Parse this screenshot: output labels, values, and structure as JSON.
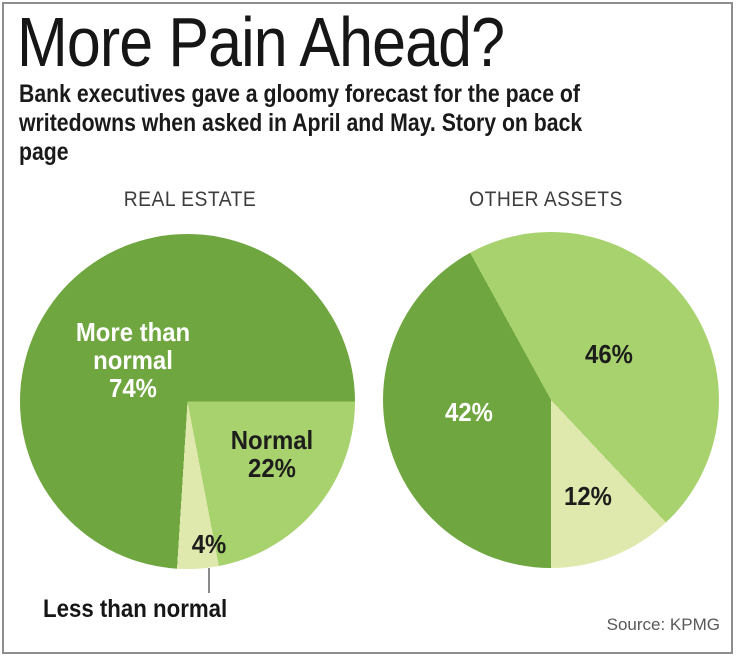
{
  "frame": {
    "border_color": "#8e8e8e"
  },
  "header": {
    "title": "More Pain Ahead?",
    "subtitle": "Bank executives gave a gloomy forecast for the pace of\nwritedowns when asked in April and May. Story on back\npage"
  },
  "source": {
    "text": "Source: KPMG"
  },
  "colors": {
    "more_than_normal": "#6fa640",
    "normal": "#a8d26e",
    "less_than_normal": "#dfe9ae",
    "pointer_line": "#8a8a8a"
  },
  "chart_data": [
    {
      "type": "pie",
      "title": "REAL ESTATE",
      "unit": "%",
      "start_deg": 90,
      "segments": [
        {
          "label": "Normal",
          "value": 22,
          "color": "#a8d26e",
          "text_color": "#1d1d1b",
          "display": "Normal\n22%"
        },
        {
          "label": "Less than normal",
          "value": 4,
          "color": "#dfe9ae",
          "text_color": "#1d1d1b",
          "display": "4%",
          "callout_label": "Less than normal"
        },
        {
          "label": "More than normal",
          "value": 74,
          "color": "#6fa640",
          "text_color": "#ffffff",
          "display": "More than\nnormal\n74%"
        }
      ]
    },
    {
      "type": "pie",
      "title": "OTHER ASSETS",
      "unit": "%",
      "start_deg": 180,
      "segments": [
        {
          "value": 42,
          "color": "#6fa640",
          "text_color": "#ffffff",
          "display": "42%"
        },
        {
          "value": 46,
          "color": "#a8d26e",
          "text_color": "#1d1d1b",
          "display": "46%"
        },
        {
          "value": 12,
          "color": "#dfe9ae",
          "text_color": "#1d1d1b",
          "display": "12%"
        }
      ]
    }
  ]
}
